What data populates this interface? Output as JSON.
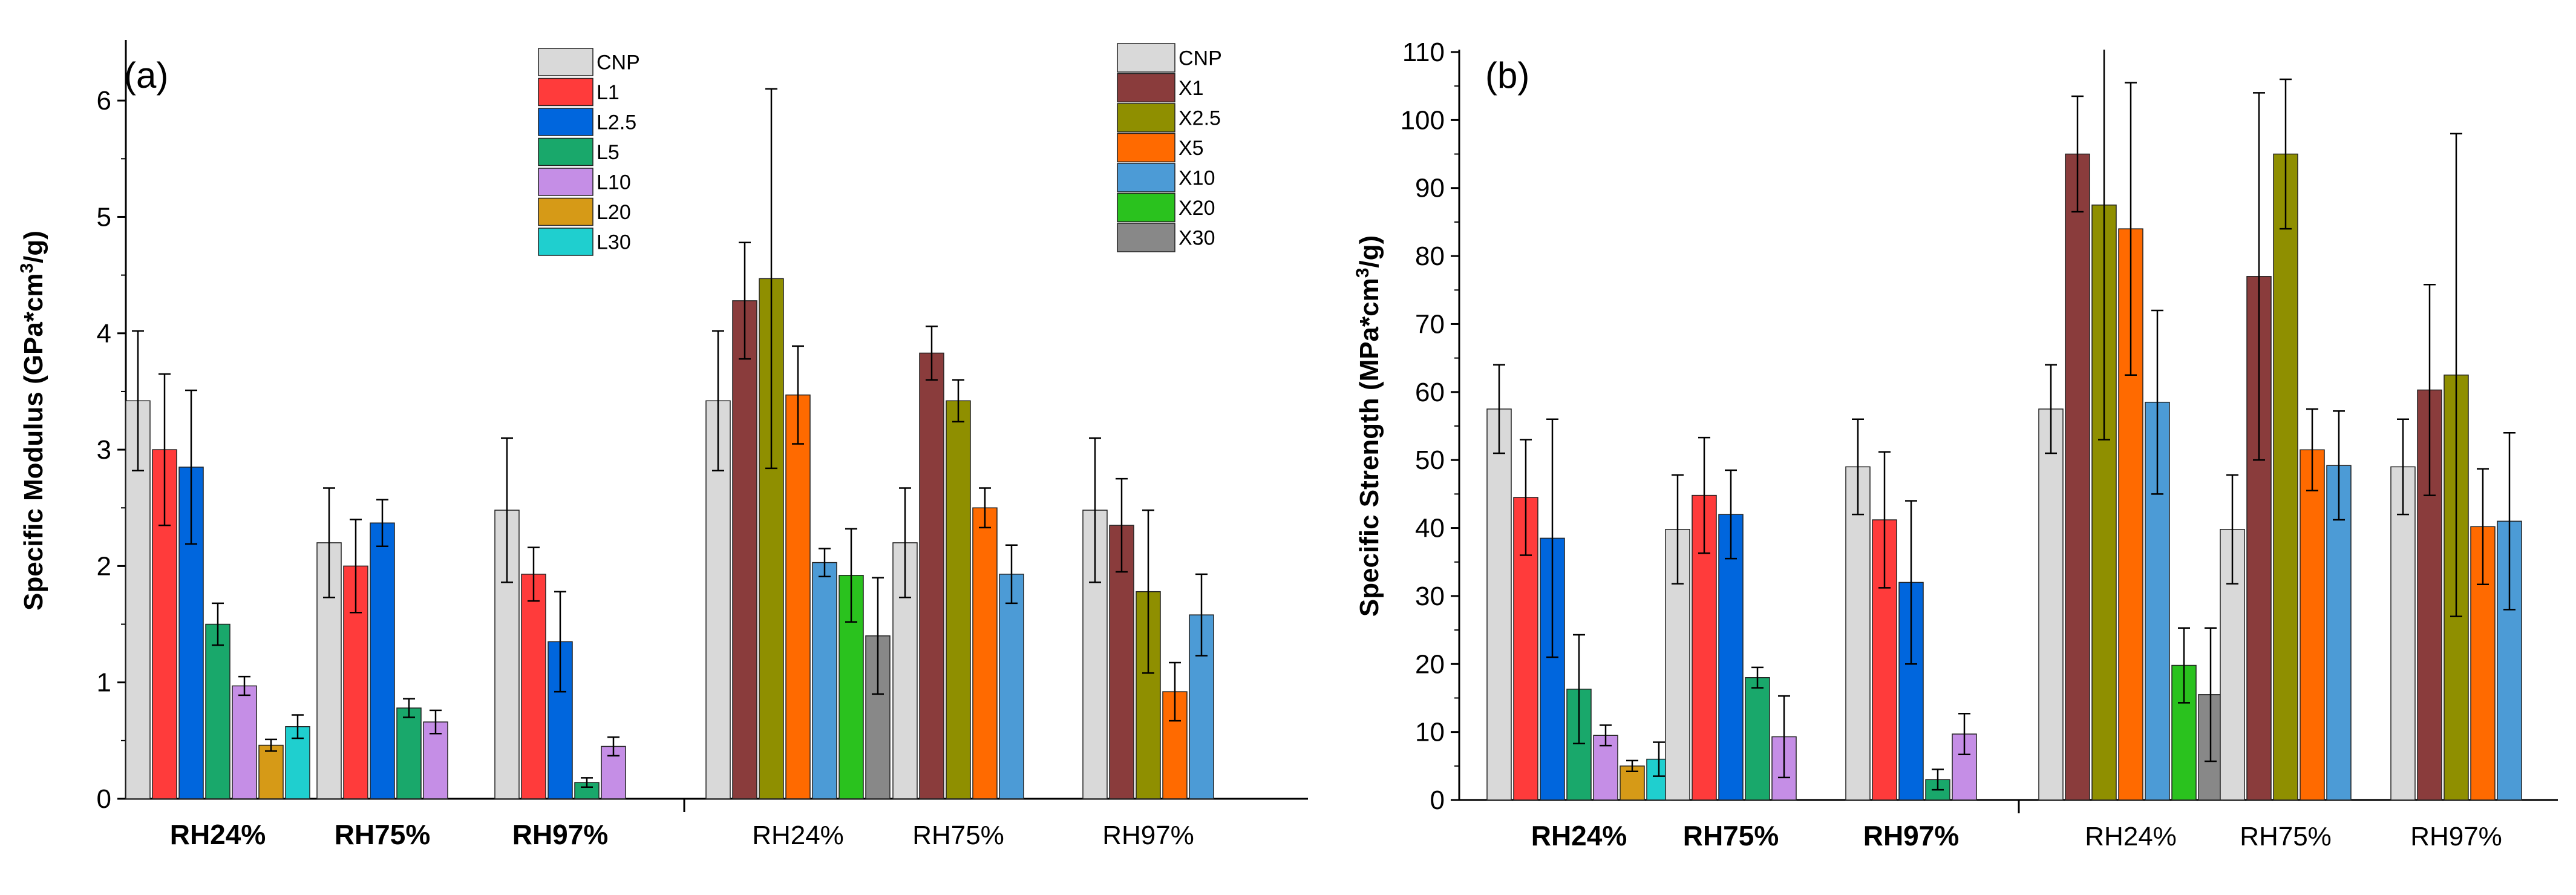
{
  "chart_data": [
    {
      "type": "bar",
      "panel_label": "(a)",
      "ylabel": "Specific Modulus (GPa*cm3/g)",
      "ylabel_parts": [
        "Specific Modulus (GPa*cm",
        "3",
        "/g)"
      ],
      "ylim": [
        0,
        6.5
      ],
      "yticks": [
        "0",
        "1",
        "2",
        "3",
        "4",
        "5",
        "6"
      ],
      "ytick_values": [
        0,
        1,
        2,
        3,
        4,
        5,
        6
      ],
      "grid": false,
      "legends": [
        {
          "placement": "top-center-left",
          "entries": [
            "CNP",
            "L1",
            "L2.5",
            "L5",
            "L10",
            "L20",
            "L30"
          ]
        },
        {
          "placement": "top-right",
          "entries": [
            "CNP",
            "X1",
            "X2.5",
            "X5",
            "X10",
            "X20",
            "X30"
          ]
        }
      ],
      "groups": [
        {
          "name": "RH24%",
          "side": "L",
          "bold": true,
          "bars": [
            {
              "s": "CNP",
              "v": 3.42,
              "e": 0.6
            },
            {
              "s": "L1",
              "v": 3.0,
              "e": 0.65
            },
            {
              "s": "L2.5",
              "v": 2.85,
              "e": 0.66
            },
            {
              "s": "L5",
              "v": 1.5,
              "e": 0.18
            },
            {
              "s": "L10",
              "v": 0.97,
              "e": 0.08
            },
            {
              "s": "L20",
              "v": 0.46,
              "e": 0.05
            },
            {
              "s": "L30",
              "v": 0.62,
              "e": 0.1
            }
          ]
        },
        {
          "name": "RH75%",
          "side": "L",
          "bold": true,
          "bars": [
            {
              "s": "CNP",
              "v": 2.2,
              "e": 0.47
            },
            {
              "s": "L1",
              "v": 2.0,
              "e": 0.4
            },
            {
              "s": "L2.5",
              "v": 2.37,
              "e": 0.2
            },
            {
              "s": "L5",
              "v": 0.78,
              "e": 0.08
            },
            {
              "s": "L10",
              "v": 0.66,
              "e": 0.1
            }
          ]
        },
        {
          "name": "RH97%",
          "side": "L",
          "bold": true,
          "bars": [
            {
              "s": "CNP",
              "v": 2.48,
              "e": 0.62
            },
            {
              "s": "L1",
              "v": 1.93,
              "e": 0.23
            },
            {
              "s": "L2.5",
              "v": 1.35,
              "e": 0.43
            },
            {
              "s": "L5",
              "v": 0.14,
              "e": 0.04
            },
            {
              "s": "L10",
              "v": 0.45,
              "e": 0.08
            }
          ]
        },
        {
          "name": "RH24%",
          "side": "X",
          "bold": false,
          "bars": [
            {
              "s": "CNP",
              "v": 3.42,
              "e": 0.6
            },
            {
              "s": "X1",
              "v": 4.28,
              "e": 0.5
            },
            {
              "s": "X2.5",
              "v": 4.47,
              "e": 1.63
            },
            {
              "s": "X5",
              "v": 3.47,
              "e": 0.42
            },
            {
              "s": "X10",
              "v": 2.03,
              "e": 0.12
            },
            {
              "s": "X20",
              "v": 1.92,
              "e": 0.4
            },
            {
              "s": "X30",
              "v": 1.4,
              "e": 0.5
            }
          ]
        },
        {
          "name": "RH75%",
          "side": "X",
          "bold": false,
          "bars": [
            {
              "s": "CNP",
              "v": 2.2,
              "e": 0.47
            },
            {
              "s": "X1",
              "v": 3.83,
              "e": 0.23
            },
            {
              "s": "X2.5",
              "v": 3.42,
              "e": 0.18
            },
            {
              "s": "X5",
              "v": 2.5,
              "e": 0.17
            },
            {
              "s": "X10",
              "v": 1.93,
              "e": 0.25
            }
          ]
        },
        {
          "name": "RH97%",
          "side": "X",
          "bold": false,
          "bars": [
            {
              "s": "CNP",
              "v": 2.48,
              "e": 0.62
            },
            {
              "s": "X1",
              "v": 2.35,
              "e": 0.4
            },
            {
              "s": "X2.5",
              "v": 1.78,
              "e": 0.7
            },
            {
              "s": "X5",
              "v": 0.92,
              "e": 0.25
            },
            {
              "s": "X10",
              "v": 1.58,
              "e": 0.35
            }
          ]
        }
      ]
    },
    {
      "type": "bar",
      "panel_label": "(b)",
      "ylabel": "Specific Strength (MPa*cm3/g)",
      "ylabel_parts": [
        "Specific Strength  (MPa*cm",
        "3",
        "/g)"
      ],
      "ylim": [
        0,
        110
      ],
      "yticks": [
        "0",
        "10",
        "20",
        "30",
        "40",
        "50",
        "60",
        "70",
        "80",
        "90",
        "100",
        "110"
      ],
      "ytick_values": [
        0,
        10,
        20,
        30,
        40,
        50,
        60,
        70,
        80,
        90,
        100,
        110
      ],
      "grid": false,
      "legends": [],
      "groups": [
        {
          "name": "RH24%",
          "side": "L",
          "bold": true,
          "bars": [
            {
              "s": "CNP",
              "v": 57.5,
              "e": 6.5
            },
            {
              "s": "L1",
              "v": 44.5,
              "e": 8.5
            },
            {
              "s": "L2.5",
              "v": 38.5,
              "e": 17.5
            },
            {
              "s": "L5",
              "v": 16.3,
              "e": 8.0
            },
            {
              "s": "L10",
              "v": 9.5,
              "e": 1.5
            },
            {
              "s": "L20",
              "v": 5.0,
              "e": 0.8
            },
            {
              "s": "L30",
              "v": 6.0,
              "e": 2.5
            }
          ]
        },
        {
          "name": "RH75%",
          "side": "L",
          "bold": true,
          "bars": [
            {
              "s": "CNP",
              "v": 39.8,
              "e": 8.0
            },
            {
              "s": "L1",
              "v": 44.8,
              "e": 8.5
            },
            {
              "s": "L2.5",
              "v": 42.0,
              "e": 6.5
            },
            {
              "s": "L5",
              "v": 18.0,
              "e": 1.5
            },
            {
              "s": "L10",
              "v": 9.3,
              "e": 6.0
            }
          ]
        },
        {
          "name": "RH97%",
          "side": "L",
          "bold": true,
          "bars": [
            {
              "s": "CNP",
              "v": 49.0,
              "e": 7.0
            },
            {
              "s": "L1",
              "v": 41.2,
              "e": 10.0
            },
            {
              "s": "L2.5",
              "v": 32.0,
              "e": 12.0
            },
            {
              "s": "L5",
              "v": 3.0,
              "e": 1.5
            },
            {
              "s": "L10",
              "v": 9.7,
              "e": 3.0
            }
          ]
        },
        {
          "name": "RH24%",
          "side": "X",
          "bold": false,
          "bars": [
            {
              "s": "CNP",
              "v": 57.5,
              "e": 6.5
            },
            {
              "s": "X1",
              "v": 95.0,
              "e": 8.5
            },
            {
              "s": "X2.5",
              "v": 87.5,
              "e": 34.5
            },
            {
              "s": "X5",
              "v": 84.0,
              "e": 21.5
            },
            {
              "s": "X10",
              "v": 58.5,
              "e": 13.5
            },
            {
              "s": "X20",
              "v": 19.8,
              "e": 5.5
            },
            {
              "s": "X30",
              "v": 15.5,
              "e": 9.8
            }
          ]
        },
        {
          "name": "RH75%",
          "side": "X",
          "bold": false,
          "bars": [
            {
              "s": "CNP",
              "v": 39.8,
              "e": 8.0
            },
            {
              "s": "X1",
              "v": 77.0,
              "e": 27.0
            },
            {
              "s": "X2.5",
              "v": 95.0,
              "e": 11.0
            },
            {
              "s": "X5",
              "v": 51.5,
              "e": 6.0
            },
            {
              "s": "X10",
              "v": 49.2,
              "e": 8.0
            }
          ]
        },
        {
          "name": "RH97%",
          "side": "X",
          "bold": false,
          "bars": [
            {
              "s": "CNP",
              "v": 49.0,
              "e": 7.0
            },
            {
              "s": "X1",
              "v": 60.3,
              "e": 15.5
            },
            {
              "s": "X2.5",
              "v": 62.5,
              "e": 35.5
            },
            {
              "s": "X5",
              "v": 40.2,
              "e": 8.5
            },
            {
              "s": "X10",
              "v": 41.0,
              "e": 13.0
            }
          ]
        }
      ]
    }
  ],
  "colors": {
    "CNP": "#d9d9d9",
    "L1": "#ff3b3b",
    "L2.5": "#0066dd",
    "L5": "#19a86b",
    "L10": "#c58ee6",
    "L20": "#d69a17",
    "L30": "#1fcfcf",
    "X1": "#8a3c3c",
    "X2.5": "#8f8f00",
    "X5": "#ff6a00",
    "X10": "#4c9bd6",
    "X20": "#2ac21e",
    "X30": "#888888"
  }
}
